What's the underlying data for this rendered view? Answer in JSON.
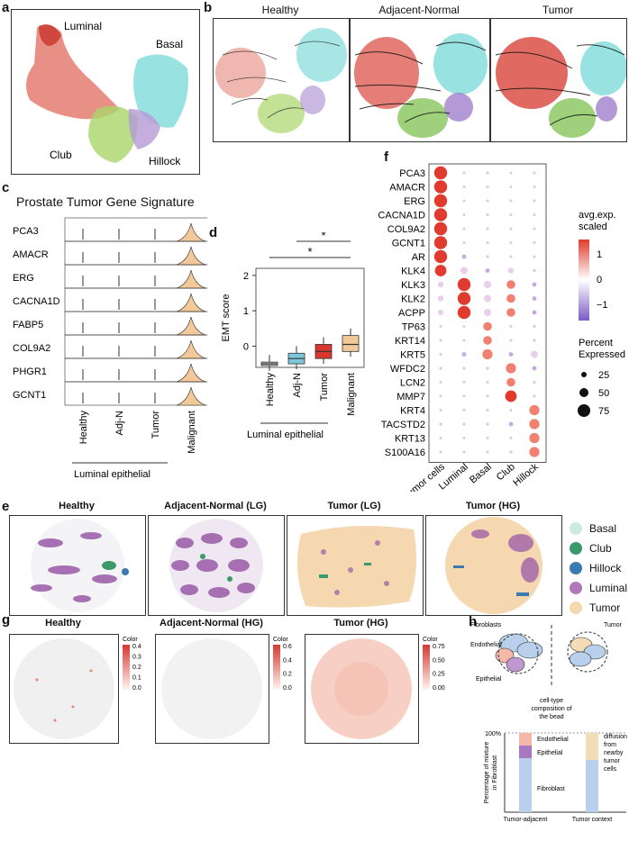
{
  "labels": {
    "a": "a",
    "b": "b",
    "c": "c",
    "d": "d",
    "e": "e",
    "f": "f",
    "g": "g",
    "h": "h"
  },
  "panel_a": {
    "clusters": [
      "Luminal",
      "Basal",
      "Club",
      "Hillock"
    ]
  },
  "panel_b": {
    "titles": [
      "Healthy",
      "Adjacent-Normal",
      "Tumor"
    ]
  },
  "panel_c": {
    "title": "Prostate Tumor Gene Signature",
    "genes": [
      "PCA3",
      "AMACR",
      "ERG",
      "CACNA1D",
      "FABP5",
      "COL9A2",
      "PHGR1",
      "GCNT1"
    ],
    "groups": [
      "Healthy",
      "Adj-N",
      "Tumor",
      "Malignant"
    ],
    "bracket": "Luminal epithelial"
  },
  "panel_d": {
    "ylabel": "EMT score",
    "yticks": [
      "2",
      "1",
      "0"
    ],
    "groups": [
      "Healthy",
      "Adj-N",
      "Tumor",
      "Malignant"
    ],
    "sig": [
      "*",
      "*"
    ],
    "bracket": "Luminal epithelial"
  },
  "panel_f": {
    "genes": [
      "PCA3",
      "AMACR",
      "ERG",
      "CACNA1D",
      "COL9A2",
      "GCNT1",
      "AR",
      "KLK4",
      "KLK3",
      "KLK2",
      "ACPP",
      "TP63",
      "KRT14",
      "KRT5",
      "WFDC2",
      "LCN2",
      "MMP7",
      "KRT4",
      "TACSTD2",
      "KRT13",
      "S100A16"
    ],
    "groups": [
      "Tumor cells",
      "Luminal",
      "Basal",
      "Club",
      "Hillock"
    ],
    "legend_color_title": "avg.exp.\nscaled",
    "color_ticks": [
      "1",
      "0",
      "−1"
    ],
    "legend_size_title": "Percent\nExpressed",
    "size_ticks": [
      "25",
      "50",
      "75"
    ]
  },
  "panel_e": {
    "titles": [
      "Healthy",
      "Adjacent-Normal (LG)",
      "Tumor (LG)",
      "Tumor (HG)"
    ],
    "legend": [
      {
        "name": "Basal",
        "color": "#cfe8e2"
      },
      {
        "name": "Club",
        "color": "#3a9a6a"
      },
      {
        "name": "Hillock",
        "color": "#3a7ab0"
      },
      {
        "name": "Luminal",
        "color": "#b07ab8"
      },
      {
        "name": "Tumor",
        "color": "#f5d8b0"
      }
    ]
  },
  "panel_g": {
    "titles": [
      "Healthy",
      "Adjacent-Normal (HG)",
      "Tumor (HG)"
    ],
    "color_label": "Color",
    "scales": [
      [
        "0.4",
        "0.3",
        "0.2",
        "0.1",
        "0.0"
      ],
      [
        "0.6",
        "0.4",
        "0.2",
        "0.0"
      ],
      [
        "0.75",
        "0.50",
        "0.25",
        "0.00"
      ]
    ]
  },
  "panel_h": {
    "cells": [
      "Fibroblasts",
      "Tumor",
      "Endothelial",
      "Epithelial"
    ],
    "bead_note": "cell-type\ncomposition of\nthe bead",
    "ylabel": "Percentage of mixture\nin Fibroblast",
    "ytick": "100%",
    "bar_labels": [
      "Endothelial",
      "Epithelial",
      "Fibroblast"
    ],
    "diffusion": "diffusion\nfrom\nnearby\ntumor\ncells",
    "xlabels": [
      "Tumor-adjacent",
      "Tumor context"
    ]
  }
}
